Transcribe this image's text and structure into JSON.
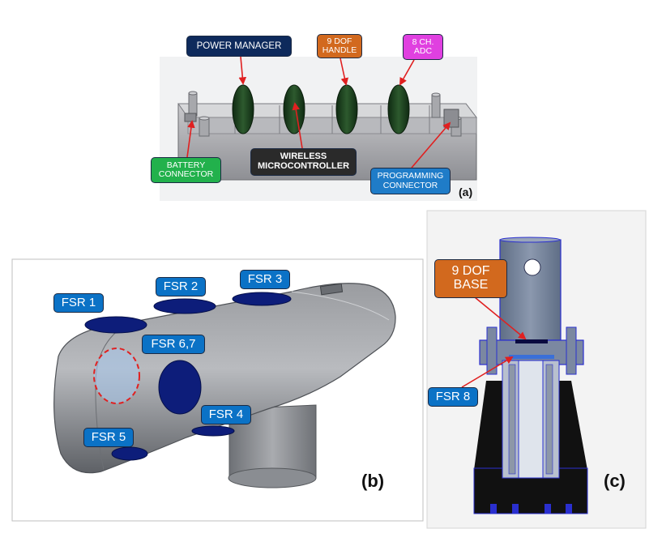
{
  "panel_a": {
    "labels": {
      "power_manager": "POWER MANAGER",
      "dof9_handle": "9 DOF\nHANDLE",
      "adc_8ch": "8 CH.\nADC",
      "wireless_mcu": "WIRELESS\nMICROCONTROLLER",
      "battery_connector": "BATTERY\nCONNECTOR",
      "programming_connector": "PROGRAMMING\nCONNECTOR"
    },
    "colors": {
      "power_manager": "#0e2a5c",
      "dof9_handle": "#d2691e",
      "adc_8ch": "#e040e0",
      "wireless_mcu": "#2a2a2a",
      "battery_connector": "#22b14c",
      "programming_connector": "#1f7cc8"
    },
    "letter": "(a)"
  },
  "panel_b": {
    "labels": {
      "fsr1": "FSR 1",
      "fsr2": "FSR 2",
      "fsr3": "FSR 3",
      "fsr4": "FSR 4",
      "fsr5": "FSR 5",
      "fsr67": "FSR 6,7"
    },
    "letter": "(b)"
  },
  "panel_c": {
    "labels": {
      "dof9_base": "9 DOF\nBASE",
      "fsr8": "FSR 8"
    },
    "letter": "(c)"
  }
}
